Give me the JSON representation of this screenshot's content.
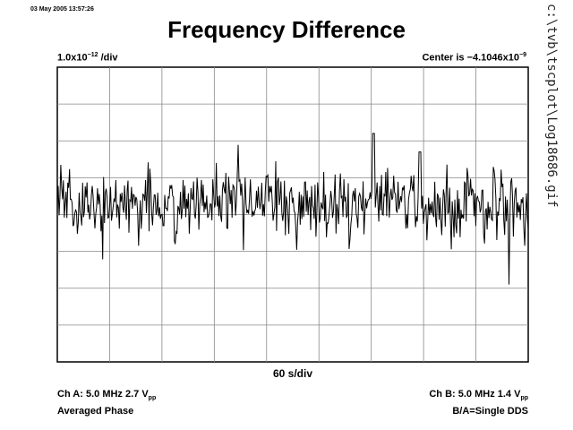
{
  "timestamp": "03 May 2005 13:57:26",
  "title": "Frequency Difference",
  "side_label": "c:\\tvb\\tscplot\\Log18686.gif",
  "scale": {
    "vertical_base": "1.0x10",
    "vertical_exp": "−12",
    "vertical_unit": " /div",
    "center_label": "Center is −4.1046x10",
    "center_exp": "−9"
  },
  "xscale": "60 s/div",
  "footer": {
    "ch_a_prefix": "Ch A: 5.0 MHz 2.7 V",
    "ch_a_sub": "pp",
    "ch_a_mode": "Averaged Phase",
    "ch_b_prefix": "Ch B: 5.0 MHz 1.4 V",
    "ch_b_sub": "pp",
    "ch_b_mode": "B/A=Single DDS"
  },
  "chart_data": {
    "type": "line",
    "x_divisions": 9,
    "y_divisions": 8,
    "x_unit_per_div": 60,
    "y_unit_per_div": 1e-12,
    "y_center": -4.1046e-09,
    "grid": true,
    "series": [
      {
        "color": "#000000",
        "seed": 7,
        "samples": 540,
        "mean_div": 0.3,
        "sigma_div": 0.5
      }
    ]
  }
}
